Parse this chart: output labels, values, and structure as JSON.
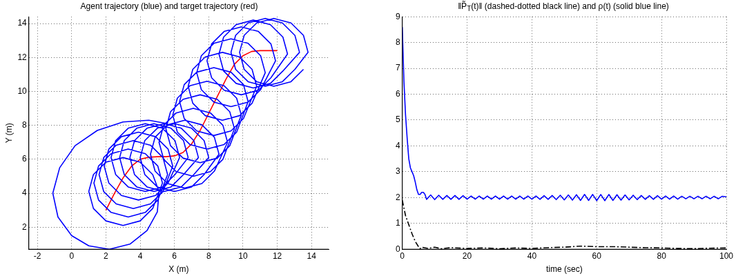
{
  "chart_data": [
    {
      "type": "line",
      "title": "Agent trajectory (blue) and target trajectory (red)",
      "xlabel": "X (m)",
      "ylabel": "Y (m)",
      "xlim": [
        -2.5,
        15
      ],
      "ylim": [
        0.7,
        14.4
      ],
      "xticks": [
        -2,
        0,
        2,
        4,
        6,
        8,
        10,
        12,
        14
      ],
      "yticks": [
        2,
        4,
        6,
        8,
        10,
        12,
        14
      ],
      "grid": true,
      "legend": false,
      "marker": "none",
      "series": [
        {
          "color": "#0000ff",
          "line_style": "solid",
          "x": [
            5.6,
            4.5,
            3,
            1.5,
            0.2,
            -0.7,
            -1.1,
            -0.8,
            0,
            1,
            2.2,
            3.4,
            4.4,
            5,
            5.1,
            4.73,
            4,
            3,
            2,
            1.27,
            1,
            1.27,
            2,
            3,
            4,
            4.73,
            5.3,
            5.03,
            4.3,
            3.3,
            2.3,
            1.57,
            1.3,
            1.57,
            2.3,
            3.3,
            4.3,
            5.03,
            5.6,
            5.33,
            4.6,
            3.6,
            2.6,
            1.87,
            1.6,
            1.87,
            2.6,
            3.6,
            4.6,
            5.33,
            5.9,
            5.63,
            4.9,
            3.9,
            2.9,
            2.17,
            1.9,
            2.17,
            2.9,
            3.9,
            4.9,
            5.63,
            6.3,
            6.03,
            5.3,
            4.3,
            3.3,
            2.57,
            2.3,
            2.57,
            3.3,
            4.3,
            5.3,
            6.03,
            6.8,
            6.53,
            5.8,
            4.8,
            3.8,
            3.07,
            2.8,
            3.07,
            3.8,
            4.8,
            5.8,
            6.53,
            7.4,
            7.13,
            6.4,
            5.4,
            4.4,
            3.67,
            3.4,
            3.67,
            4.4,
            5.4,
            6.4,
            7.13,
            8,
            7.73,
            7,
            6,
            5,
            4.27,
            4,
            4.27,
            5,
            6,
            7,
            7.73,
            8.6,
            8.33,
            7.6,
            6.6,
            5.6,
            4.87,
            4.6,
            4.87,
            5.6,
            6.6,
            7.6,
            8.33,
            9.1,
            8.83,
            8.1,
            7.1,
            6.1,
            5.37,
            5.1,
            5.37,
            6.1,
            7.1,
            8.1,
            8.83,
            9.5,
            9.23,
            8.5,
            7.5,
            6.5,
            5.77,
            5.5,
            5.77,
            6.5,
            7.5,
            8.5,
            9.23,
            9.9,
            9.63,
            8.9,
            7.9,
            6.9,
            6.17,
            5.9,
            6.17,
            6.9,
            7.9,
            8.9,
            9.63,
            10.3,
            10.03,
            9.3,
            8.3,
            7.3,
            6.57,
            6.3,
            6.57,
            7.3,
            8.3,
            9.3,
            10.03,
            10.8,
            10.53,
            9.8,
            8.8,
            7.8,
            7.07,
            6.8,
            7.07,
            7.8,
            8.8,
            9.8,
            10.53,
            11.3,
            11.03,
            10.3,
            9.3,
            8.3,
            7.57,
            7.3,
            7.57,
            8.3,
            9.3,
            10.3,
            11.03,
            11.9,
            11.63,
            10.9,
            9.9,
            8.9,
            8.17,
            7.9,
            8.17,
            8.9,
            9.9,
            10.9,
            11.63,
            12.6,
            12.33,
            11.6,
            10.6,
            9.6,
            8.87,
            8.6,
            8.87,
            9.6,
            10.6,
            11.6,
            12.33,
            13.3,
            13.03,
            12.3,
            11.3,
            10.3,
            9.57,
            9.3,
            9.57,
            10.3,
            11.3,
            12.3,
            13.03,
            13.8,
            13.53,
            12.8,
            11.8,
            10.8,
            10.07,
            9.8,
            10.07,
            10.8,
            11.8,
            12.8,
            13.53
          ],
          "values": [
            8.1,
            8.3,
            8.2,
            7.7,
            6.8,
            5.5,
            4,
            2.6,
            1.5,
            0.9,
            0.7,
            1,
            1.8,
            2.9,
            4.1,
            5.1,
            5.83,
            6.1,
            5.83,
            5.1,
            4.1,
            3.1,
            2.37,
            2.1,
            2.37,
            3.1,
            4.6,
            5.6,
            6.33,
            6.6,
            6.33,
            5.6,
            4.6,
            3.6,
            2.87,
            2.6,
            2.87,
            3.6,
            5.1,
            6.1,
            6.83,
            7.1,
            6.83,
            6.1,
            5.1,
            4.1,
            3.37,
            3.1,
            3.37,
            4.1,
            5.6,
            6.6,
            7.33,
            7.6,
            7.33,
            6.6,
            5.6,
            4.6,
            3.87,
            3.6,
            3.87,
            4.6,
            6.1,
            7.1,
            7.83,
            8.1,
            7.83,
            7.1,
            6.1,
            5.1,
            4.37,
            4.1,
            4.37,
            5.1,
            6.1,
            7.1,
            7.83,
            8.1,
            7.83,
            7.1,
            6.1,
            5.1,
            4.37,
            4.1,
            4.37,
            5.1,
            6.1,
            7.1,
            7.83,
            8.1,
            7.83,
            7.1,
            6.1,
            5.1,
            4.37,
            4.1,
            4.37,
            5.1,
            6.1,
            7.1,
            7.83,
            8.1,
            7.83,
            7.1,
            6.1,
            5.1,
            4.37,
            4.1,
            4.37,
            5.1,
            6.3,
            7.3,
            8.03,
            8.3,
            8.03,
            7.3,
            6.3,
            5.3,
            4.57,
            4.3,
            4.57,
            5.3,
            7,
            8,
            8.73,
            9,
            8.73,
            8,
            7,
            6,
            5.27,
            5,
            5.27,
            6,
            7.8,
            8.8,
            9.53,
            9.8,
            9.53,
            8.8,
            7.8,
            6.8,
            6.07,
            5.8,
            6.07,
            6.8,
            8.6,
            9.6,
            10.33,
            10.6,
            10.33,
            9.6,
            8.6,
            7.6,
            6.87,
            6.6,
            6.87,
            7.6,
            9.4,
            10.4,
            11.13,
            11.4,
            11.13,
            10.4,
            9.4,
            8.4,
            7.67,
            7.4,
            7.67,
            8.4,
            10.3,
            11.3,
            12.03,
            12.3,
            12.03,
            11.3,
            10.3,
            9.3,
            8.57,
            8.3,
            8.57,
            9.3,
            11.1,
            12.1,
            12.83,
            13.1,
            12.83,
            12.1,
            11.1,
            10.1,
            9.37,
            9.1,
            9.37,
            10.1,
            11.8,
            12.8,
            13.53,
            13.8,
            13.53,
            12.8,
            11.8,
            10.8,
            10.07,
            9.8,
            10.07,
            10.8,
            12.2,
            13.2,
            13.93,
            14.2,
            13.93,
            13.2,
            12.2,
            11.2,
            10.47,
            10.2,
            10.47,
            11.2,
            12.3,
            13.3,
            14.03,
            14.3,
            14.03,
            13.3,
            12.3,
            11.3,
            10.57,
            10.3,
            10.57,
            11.3,
            12.3,
            13.3,
            14.03,
            14.3,
            14.03,
            13.3,
            12.3,
            11.3,
            10.57,
            10.3,
            10.57,
            11.3
          ]
        },
        {
          "color": "#ff0000",
          "line_style": "solid",
          "x": [
            2,
            2.5,
            3,
            3.5,
            4,
            4.5,
            5,
            5.5,
            6,
            6.5,
            7,
            7.5,
            8,
            8.5,
            9,
            9.5,
            10,
            10.5,
            11,
            12
          ],
          "values": [
            3,
            4,
            4.9,
            5.6,
            6,
            6.12,
            6.15,
            6.15,
            6.2,
            6.4,
            6.9,
            7.7,
            8.7,
            9.7,
            10.7,
            11.6,
            12.1,
            12.35,
            12.4,
            12.4
          ]
        }
      ]
    },
    {
      "type": "line",
      "title": "‖P̃$_{T}$(t)‖ (dashed-dotted black line) and ρ(t) (solid blue line)",
      "xlabel": "time (sec)",
      "xlim": [
        0,
        100
      ],
      "ylim": [
        0,
        9
      ],
      "xticks": [
        0,
        20,
        40,
        60,
        80,
        100
      ],
      "yticks": [
        0,
        1,
        2,
        3,
        4,
        5,
        6,
        7,
        8,
        9
      ],
      "grid": true,
      "legend": false,
      "marker": "none",
      "series": [
        {
          "color": "#0000ff",
          "line_style": "solid",
          "x": [
            0,
            0.5,
            1,
            1.5,
            2,
            2.5,
            3,
            3.5,
            4,
            4.5,
            5,
            5.5,
            6,
            6.5,
            7,
            7.5,
            8.75,
            10,
            11.25,
            12.5,
            13.75,
            15,
            16.25,
            17.5,
            18.75,
            20,
            21.25,
            22.5,
            23.75,
            25,
            26.25,
            27.5,
            28.75,
            30,
            31.25,
            32.5,
            33.75,
            35,
            36.25,
            37.5,
            38.75,
            40,
            41.25,
            42.5,
            43.75,
            45,
            46.25,
            47.5,
            48.75,
            50,
            51.25,
            52.5,
            53.75,
            55,
            56.25,
            57.5,
            58.75,
            60,
            61.25,
            62.5,
            63.75,
            65,
            66.25,
            67.5,
            68.75,
            70,
            71.25,
            72.5,
            73.75,
            75,
            76.25,
            77.5,
            78.75,
            80,
            81.25,
            82.5,
            83.75,
            85,
            86.25,
            87.5,
            88.75,
            90,
            91.25,
            92.5,
            93.75,
            95,
            96.25,
            97.5,
            98.75,
            100
          ],
          "values": [
            8.6,
            6.5,
            5.2,
            4.3,
            3.5,
            3.15,
            3,
            2.85,
            2.6,
            2.3,
            2.12,
            2.12,
            2.2,
            2.2,
            2.12,
            1.93,
            2.1,
            1.92,
            2.09,
            1.93,
            2.08,
            1.93,
            2.08,
            1.93,
            2.07,
            1.94,
            2.06,
            1.94,
            2.06,
            1.94,
            2.06,
            1.94,
            2.06,
            1.94,
            2.06,
            1.94,
            2.06,
            1.94,
            2.06,
            1.94,
            2.06,
            1.94,
            2.06,
            1.93,
            2.07,
            1.93,
            2.08,
            1.92,
            2.09,
            1.91,
            2.1,
            1.9,
            2.11,
            1.89,
            2.12,
            1.89,
            2.12,
            1.88,
            2.12,
            1.88,
            2.12,
            1.89,
            2.11,
            1.9,
            2.1,
            1.91,
            2.09,
            1.92,
            2.08,
            1.93,
            2.07,
            1.93,
            2.07,
            1.94,
            2.06,
            1.94,
            2.06,
            1.94,
            2.05,
            1.95,
            2.05,
            1.95,
            2.05,
            1.95,
            2.05,
            1.95,
            2.05,
            1.95,
            2.05,
            2.03
          ]
        },
        {
          "color": "#000000",
          "line_style": "dashed",
          "x": [
            0,
            1,
            2,
            3,
            4,
            5,
            5.5,
            6,
            8,
            10,
            12,
            15,
            20,
            25,
            30,
            35,
            40,
            45,
            50,
            55,
            60,
            65,
            70,
            75,
            80,
            85,
            90,
            95,
            100
          ],
          "values": [
            1.9,
            1.3,
            0.95,
            0.6,
            0.3,
            0.1,
            0.02,
            0.08,
            0.03,
            0.08,
            0.02,
            0.06,
            0.03,
            0.05,
            0.02,
            0.05,
            0.03,
            0.06,
            0.08,
            0.12,
            0.1,
            0.1,
            0.08,
            0.06,
            0.05,
            0.03,
            0.02,
            0.04,
            0.05
          ]
        }
      ]
    }
  ]
}
